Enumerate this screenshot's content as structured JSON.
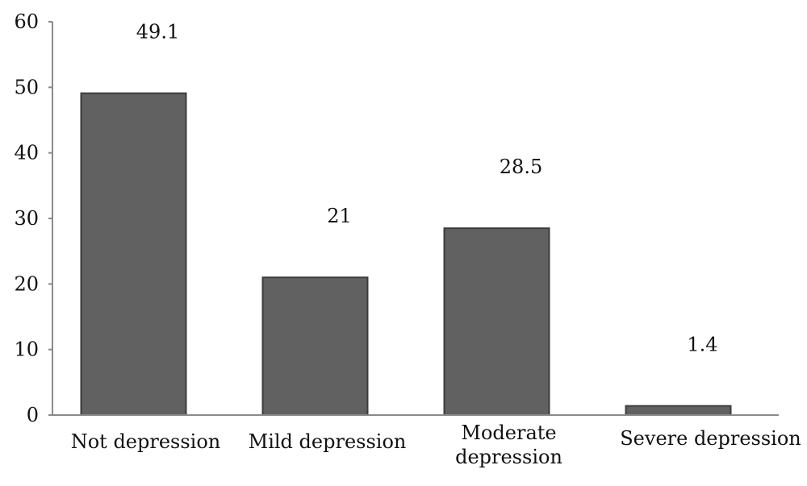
{
  "chart_data": {
    "type": "bar",
    "categories": [
      [
        "Not depression"
      ],
      [
        "Mild depression"
      ],
      [
        "Moderate",
        "depression"
      ],
      [
        "Severe depression"
      ]
    ],
    "values": [
      49.1,
      21,
      28.5,
      1.4
    ],
    "value_labels": [
      "49.1",
      "21",
      "28.5",
      "1.4"
    ],
    "title": "",
    "xlabel": "",
    "ylabel": "",
    "ylim": [
      0,
      60
    ],
    "yticks": [
      0,
      10,
      20,
      30,
      40,
      50,
      60
    ],
    "grid": false,
    "legend": "none",
    "colors": {
      "bar_fill": "#616161",
      "bar_stroke": "#3c3c3c",
      "axis": "#8a8a8a"
    }
  }
}
